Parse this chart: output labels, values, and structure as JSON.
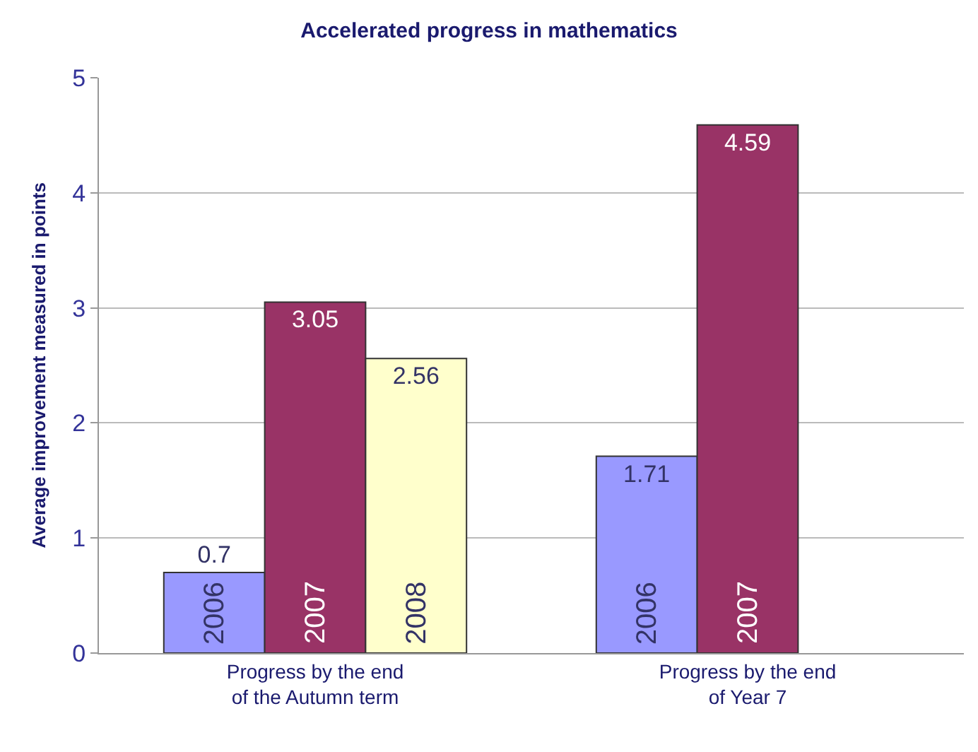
{
  "chart_data": {
    "type": "bar",
    "title": "Accelerated progress in mathematics",
    "ylabel": "Average improvement measured in points",
    "categories": [
      "Progress by the end\nof the Autumn term",
      "Progress by the end\nof Year 7"
    ],
    "series": [
      {
        "name": "2006",
        "color": "#9999ff",
        "values": [
          0.7,
          1.71
        ]
      },
      {
        "name": "2007",
        "color": "#993366",
        "values": [
          3.05,
          4.59
        ]
      },
      {
        "name": "2008",
        "color": "#ffffcc",
        "values": [
          2.56,
          null
        ]
      }
    ],
    "ylim": [
      0,
      5
    ],
    "yticks": [
      0,
      1,
      2,
      3,
      4,
      5
    ],
    "grid": "y",
    "legend": false,
    "data_labels": true
  }
}
